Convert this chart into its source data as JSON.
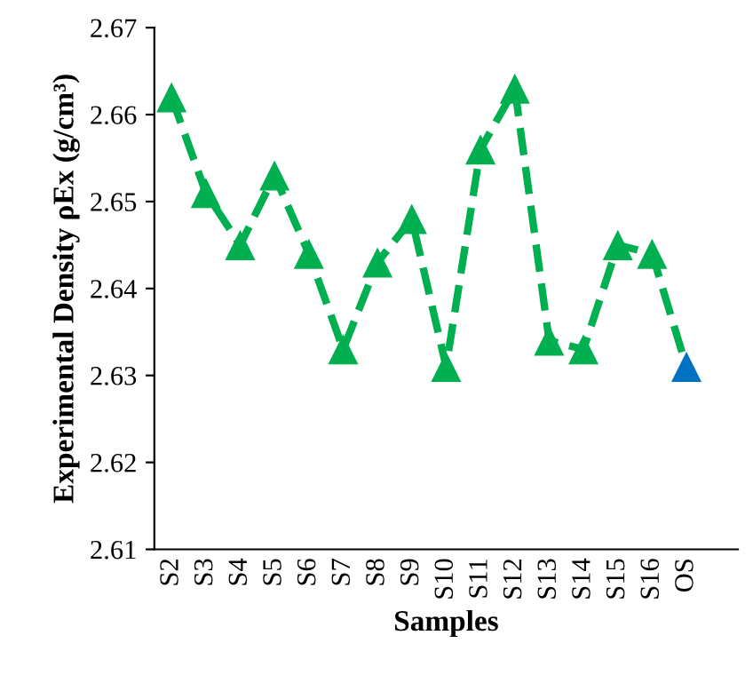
{
  "chart_data": {
    "type": "line",
    "xlabel": "Samples",
    "ylabel": "Experimental Density ρEx (g/cm³)",
    "categories": [
      "S2",
      "S3",
      "S4",
      "S5",
      "S6",
      "S7",
      "S8",
      "S9",
      "S10",
      "S11",
      "S12",
      "S13",
      "S14",
      "S15",
      "S16",
      "OS"
    ],
    "series": [
      {
        "color": "#00b050",
        "colors": [
          "#00b050",
          "#00b050",
          "#00b050",
          "#00b050",
          "#00b050",
          "#00b050",
          "#00b050",
          "#00b050",
          "#00b050",
          "#00b050",
          "#00b050",
          "#00b050",
          "#00b050",
          "#00b050",
          "#00b050",
          "#0070c0"
        ],
        "values": [
          2.662,
          2.651,
          2.645,
          2.653,
          2.644,
          2.633,
          2.643,
          2.648,
          2.631,
          2.656,
          2.663,
          2.634,
          2.633,
          2.645,
          2.644,
          2.631
        ]
      }
    ],
    "ylim": [
      2.61,
      2.67
    ],
    "yticks": [
      2.61,
      2.62,
      2.63,
      2.64,
      2.65,
      2.66,
      2.67
    ],
    "grid": false,
    "legend": false,
    "marker": "triangle",
    "line_style": "dashed"
  }
}
